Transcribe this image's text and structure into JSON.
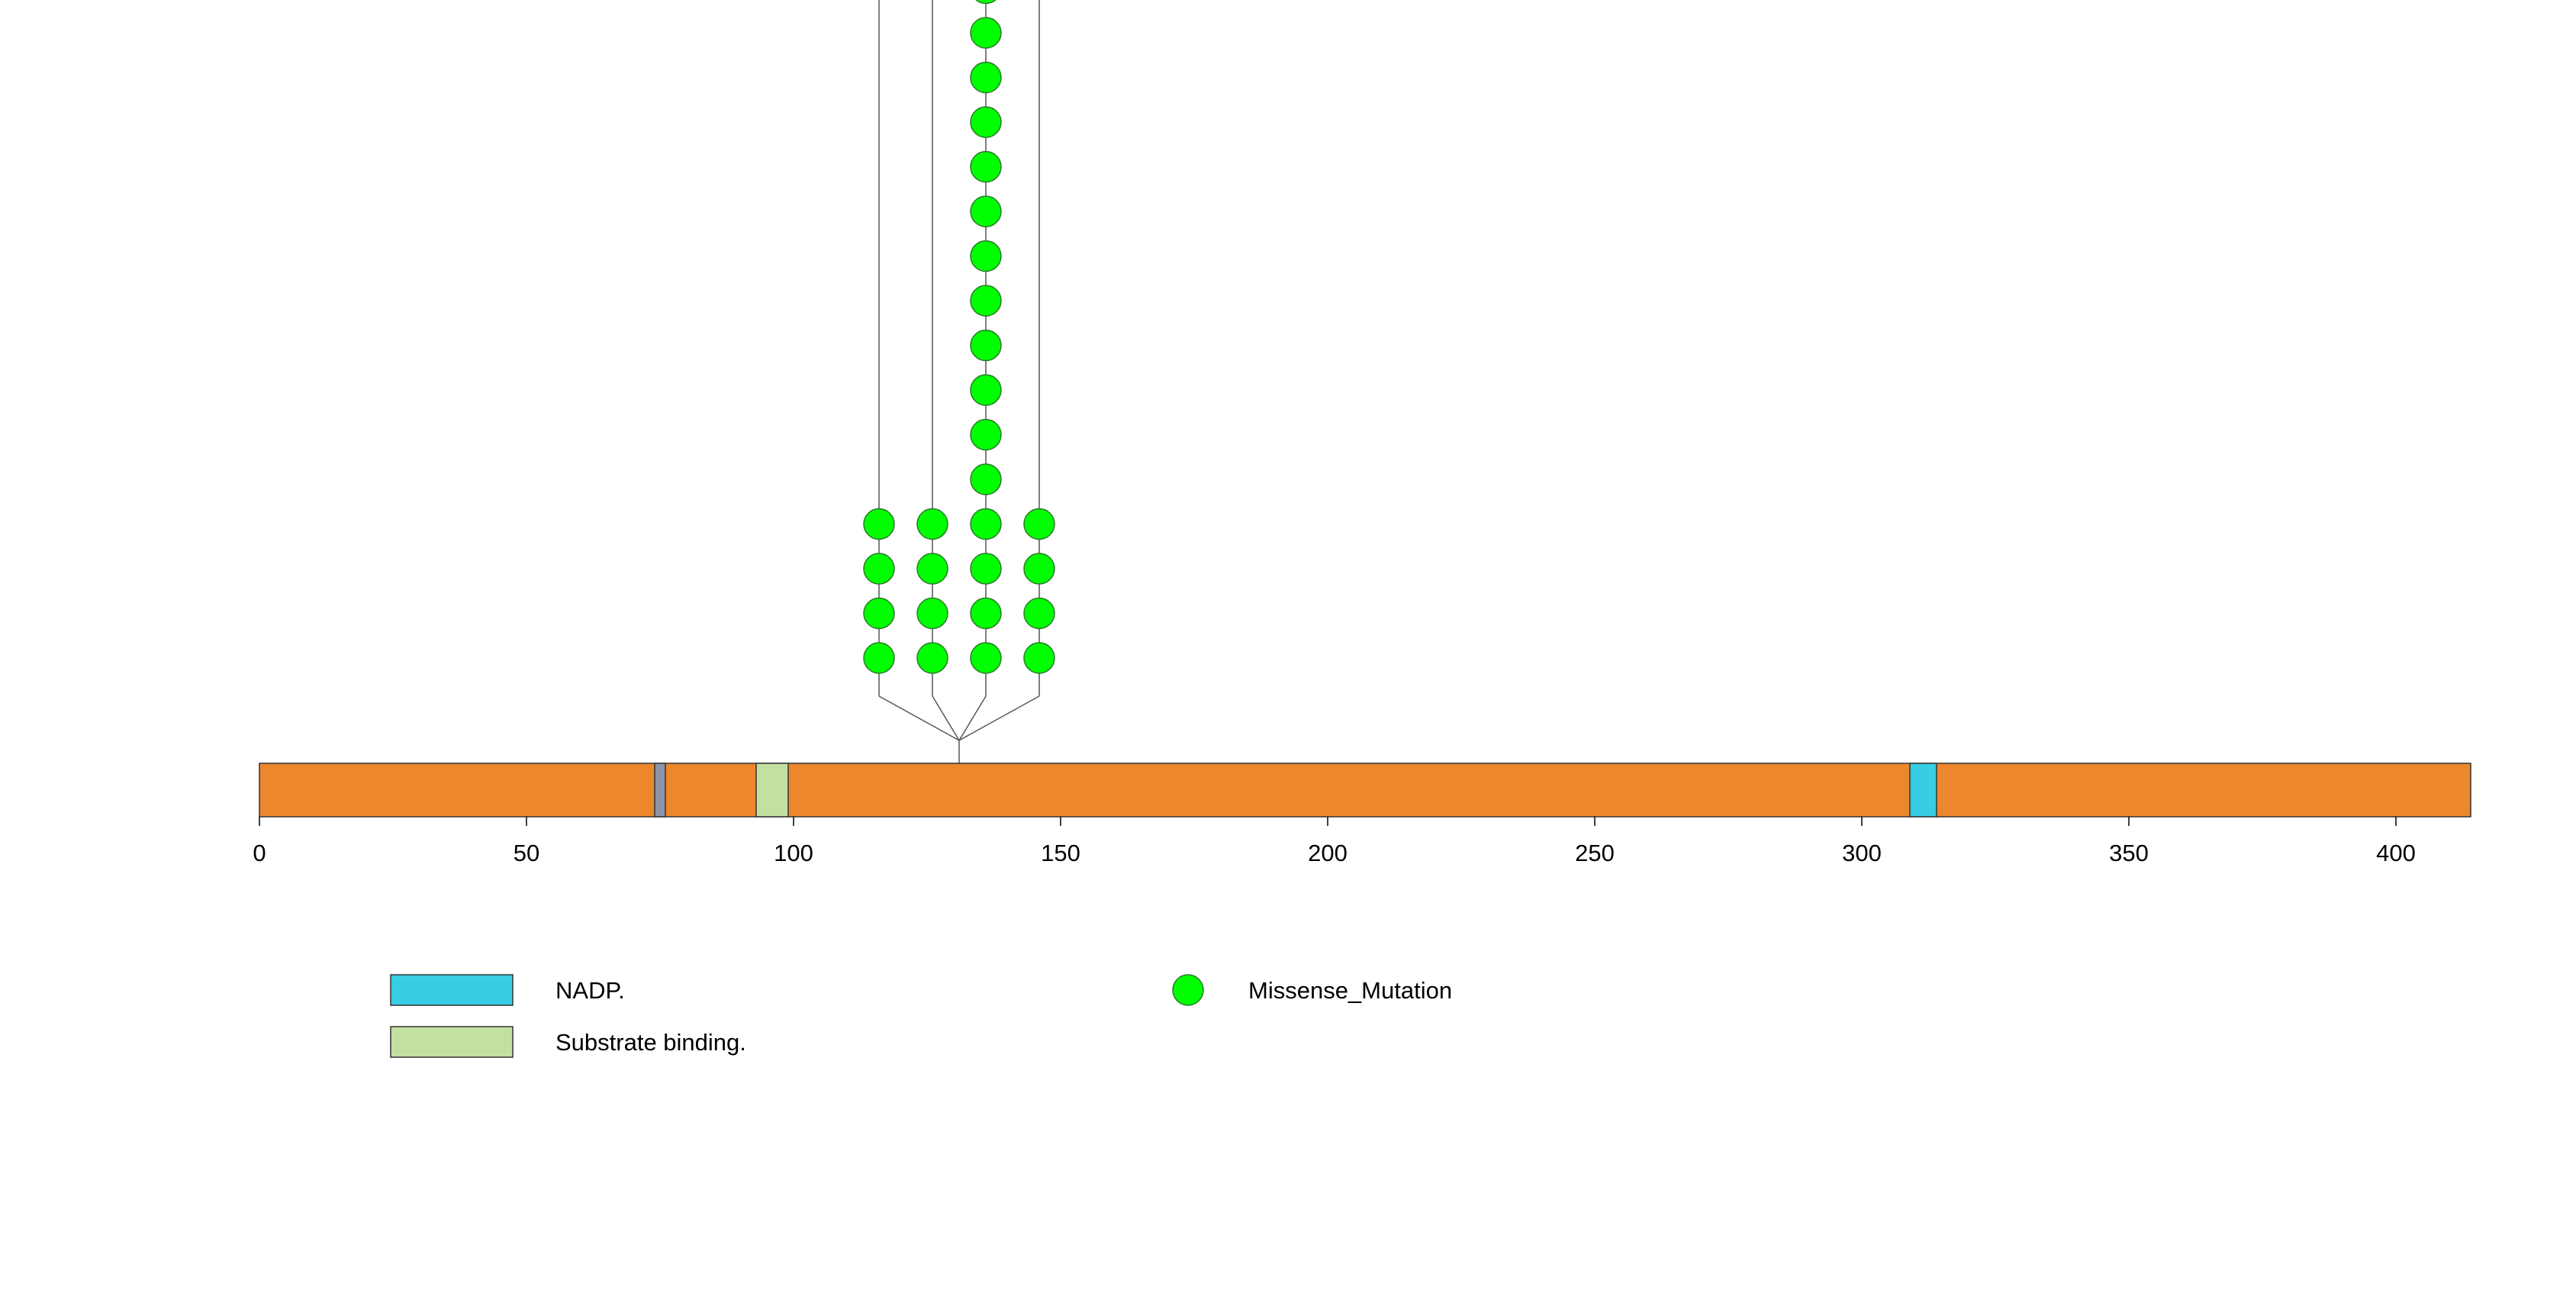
{
  "chart_data": {
    "type": "lollipop",
    "title": "",
    "protein_length": 414,
    "x_ticks": [
      0,
      50,
      100,
      150,
      200,
      250,
      300,
      350,
      400
    ],
    "xlim": [
      0,
      414
    ],
    "backbone_color": "#ED872D",
    "domains": [
      {
        "name": "Unlabeled region",
        "start": 74,
        "end": 76,
        "color": "#8C96A8"
      },
      {
        "name": "Substrate binding.",
        "start": 93,
        "end": 99,
        "color": "#C2E0A0"
      },
      {
        "name": "NADP.",
        "start": 309,
        "end": 314,
        "color": "#37CDE3"
      }
    ],
    "convergence_position": 131,
    "mutations": [
      {
        "position": 116,
        "count": 4,
        "type": "Missense_Mutation"
      },
      {
        "position": 126,
        "count": 4,
        "type": "Missense_Mutation"
      },
      {
        "position": 136,
        "count": 16,
        "type": "Missense_Mutation",
        "note": "stack extends beyond top of image"
      },
      {
        "position": 146,
        "count": 4,
        "type": "Missense_Mutation"
      }
    ],
    "mutation_color": "#00FF00",
    "legend": {
      "domains": [
        {
          "label": "NADP.",
          "color": "#37CDE3"
        },
        {
          "label": "Substrate binding.",
          "color": "#C2E0A0"
        }
      ],
      "mutations": [
        {
          "label": "Missense_Mutation",
          "color": "#00FF00"
        }
      ]
    }
  }
}
